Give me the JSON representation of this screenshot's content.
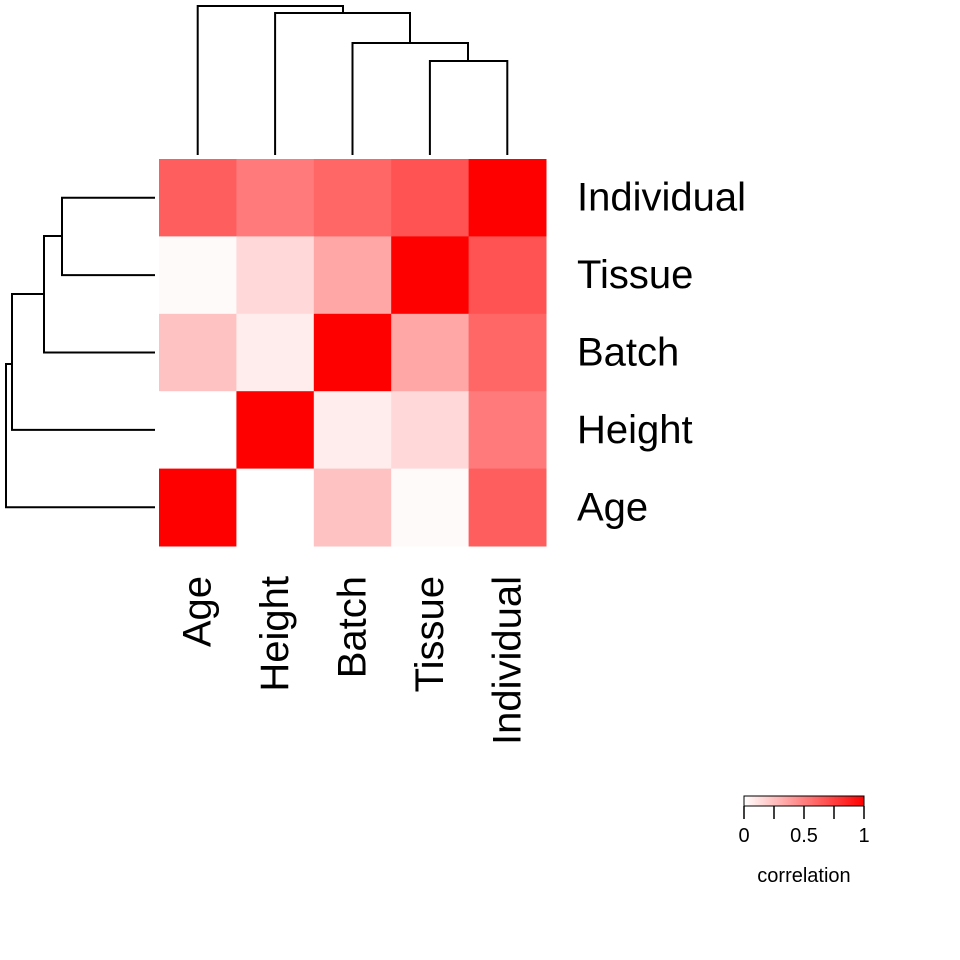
{
  "chart_data": {
    "type": "heatmap",
    "title": "",
    "xlabel": "",
    "ylabel": "",
    "columns": [
      "Age",
      "Height",
      "Batch",
      "Tissue",
      "Individual"
    ],
    "rows": [
      "Individual",
      "Tissue",
      "Batch",
      "Height",
      "Age"
    ],
    "values": [
      [
        0.63,
        0.52,
        0.6,
        0.68,
        1.0
      ],
      [
        0.02,
        0.15,
        0.35,
        1.0,
        0.68
      ],
      [
        0.24,
        0.07,
        1.0,
        0.35,
        0.6
      ],
      [
        0.0,
        1.0,
        0.07,
        0.15,
        0.52
      ],
      [
        1.0,
        0.0,
        0.24,
        0.02,
        0.63
      ]
    ],
    "color_scale": {
      "low": "#ffffff",
      "high": "#ff0000",
      "min": 0,
      "max": 1
    },
    "legend": {
      "title": "correlation",
      "ticks": [
        "0",
        "0.5",
        "1"
      ],
      "placement": "bottom-right"
    },
    "column_dendrogram": true,
    "row_dendrogram": true
  }
}
